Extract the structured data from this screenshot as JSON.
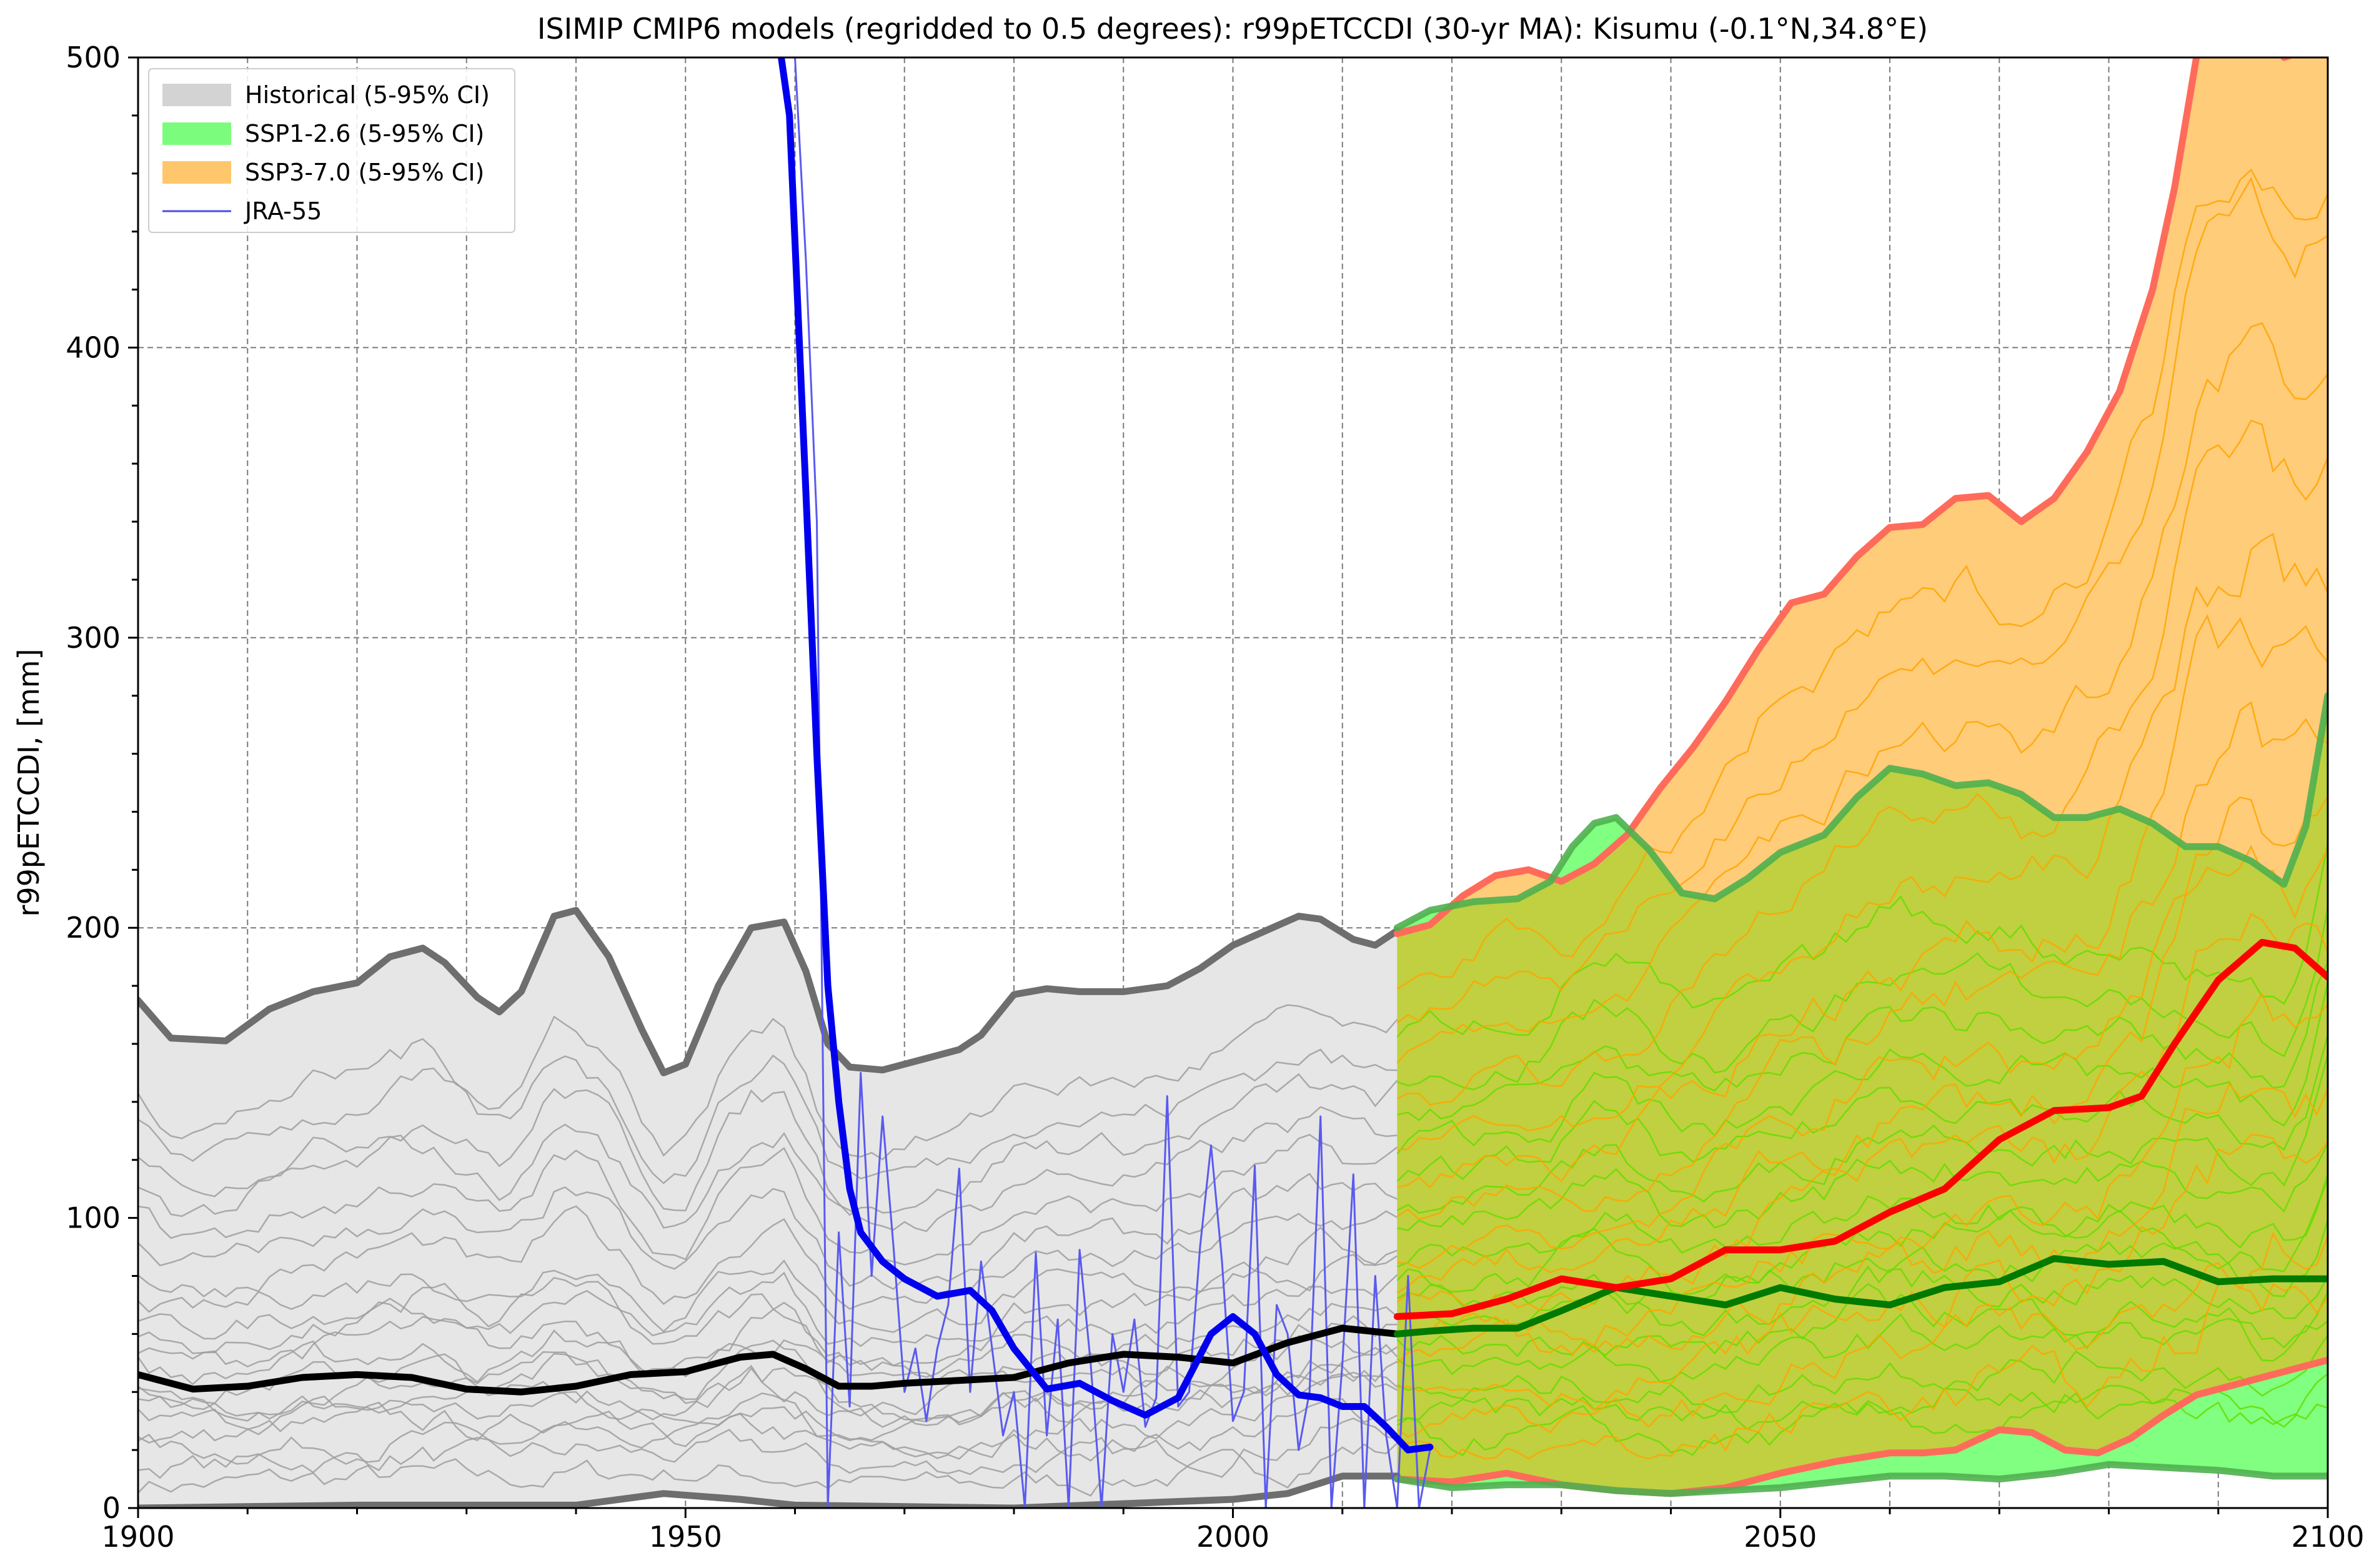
{
  "chart_data": {
    "type": "line",
    "title": "ISIMIP CMIP6 models (regridded to 0.5 degrees): r99pETCCDI (30-yr MA): Kisumu (-0.1°N,34.8°E)",
    "xlabel": "",
    "ylabel": "r99pETCCDI, [mm]",
    "xlim": [
      1900,
      2100
    ],
    "ylim": [
      0,
      500
    ],
    "x_ticks": [
      "1900",
      "1950",
      "2000",
      "2050",
      "2100"
    ],
    "y_ticks": [
      "0",
      "100",
      "200",
      "300",
      "400",
      "500"
    ],
    "grid": true,
    "legend_position": "top-left",
    "legend": [
      {
        "label": "Historical (5-95% CI)",
        "color": "#d3d3d3",
        "kind": "patch"
      },
      {
        "label": "SSP1-2.6 (5-95% CI)",
        "color": "#7cfc7c",
        "kind": "patch"
      },
      {
        "label": "SSP3-7.0 (5-95% CI)",
        "color": "#ffc66b",
        "kind": "patch"
      },
      {
        "label": "JRA-55",
        "color": "#4a4ae8",
        "kind": "line"
      }
    ],
    "colors": {
      "hist_band": "#e6e6e6",
      "hist_bound": "#6e6e6e",
      "hist_mean": "#000000",
      "hist_members": "#9e9e9e",
      "ssp126_band": "#80ff80",
      "ssp126_bound": "#4fb04f",
      "ssp126_mean": "#007a00",
      "ssp126_members": "#66dd00",
      "ssp370_band": "#ffcc7a",
      "ssp370_bound": "#ff6b5a",
      "ssp370_mean": "#ff0000",
      "ssp370_members": "#ffa500",
      "overlap_band": "#c0d040",
      "jra_raw": "#5a5af0",
      "jra_smooth": "#0000ee"
    },
    "series": [
      {
        "id": "hist_upper",
        "group": "historical",
        "role": "upper",
        "x": [
          1900,
          1903,
          1908,
          1912,
          1916,
          1920,
          1923,
          1926,
          1928,
          1931,
          1933,
          1935,
          1938,
          1940,
          1943,
          1946,
          1948,
          1950,
          1953,
          1956,
          1959,
          1961,
          1963,
          1965,
          1968,
          1972,
          1975,
          1977,
          1980,
          1983,
          1986,
          1990,
          1994,
          1997,
          2000,
          2003,
          2006,
          2008,
          2011,
          2013,
          2015
        ],
        "y": [
          175,
          162,
          161,
          172,
          178,
          181,
          190,
          193,
          188,
          176,
          171,
          178,
          204,
          206,
          190,
          165,
          150,
          153,
          180,
          200,
          202,
          185,
          160,
          152,
          151,
          155,
          158,
          163,
          177,
          179,
          178,
          178,
          180,
          186,
          194,
          199,
          204,
          203,
          196,
          194,
          199
        ]
      },
      {
        "id": "hist_mean",
        "group": "historical",
        "role": "mean",
        "x": [
          1900,
          1905,
          1910,
          1915,
          1920,
          1925,
          1930,
          1935,
          1940,
          1945,
          1950,
          1955,
          1958,
          1961,
          1964,
          1967,
          1970,
          1975,
          1980,
          1985,
          1990,
          1995,
          2000,
          2005,
          2010,
          2015
        ],
        "y": [
          46,
          41,
          42,
          45,
          46,
          45,
          41,
          40,
          42,
          46,
          47,
          52,
          53,
          48,
          42,
          42,
          43,
          44,
          45,
          50,
          53,
          52,
          50,
          57,
          62,
          60
        ]
      },
      {
        "id": "hist_lower",
        "group": "historical",
        "role": "lower",
        "x": [
          1900,
          1920,
          1940,
          1948,
          1955,
          1960,
          1980,
          2000,
          2005,
          2010,
          2015
        ],
        "y": [
          0,
          1,
          1,
          5,
          3,
          1,
          0,
          3,
          5,
          11,
          11
        ]
      },
      {
        "id": "ssp126_upper",
        "group": "ssp126",
        "role": "upper",
        "x": [
          2015,
          2018,
          2022,
          2026,
          2029,
          2031,
          2033,
          2035,
          2038,
          2041,
          2044,
          2047,
          2050,
          2054,
          2057,
          2060,
          2063,
          2066,
          2069,
          2072,
          2075,
          2078,
          2081,
          2084,
          2087,
          2090,
          2093,
          2096,
          2098,
          2100
        ],
        "y": [
          200,
          206,
          209,
          210,
          216,
          228,
          236,
          238,
          227,
          212,
          210,
          217,
          226,
          232,
          245,
          255,
          253,
          249,
          250,
          246,
          238,
          238,
          241,
          236,
          228,
          228,
          223,
          215,
          235,
          280
        ]
      },
      {
        "id": "ssp126_mean",
        "group": "ssp126",
        "role": "mean",
        "x": [
          2015,
          2018,
          2022,
          2026,
          2030,
          2035,
          2040,
          2045,
          2050,
          2055,
          2060,
          2065,
          2070,
          2075,
          2080,
          2085,
          2090,
          2095,
          2100
        ],
        "y": [
          60,
          61,
          62,
          62,
          68,
          76,
          73,
          70,
          76,
          72,
          70,
          76,
          78,
          86,
          84,
          85,
          78,
          79,
          79
        ]
      },
      {
        "id": "ssp126_lower",
        "group": "ssp126",
        "role": "lower",
        "x": [
          2015,
          2020,
          2025,
          2030,
          2035,
          2040,
          2045,
          2050,
          2055,
          2060,
          2065,
          2070,
          2075,
          2080,
          2085,
          2090,
          2095,
          2100
        ],
        "y": [
          10,
          7,
          8,
          8,
          6,
          5,
          6,
          7,
          9,
          11,
          11,
          10,
          12,
          15,
          14,
          13,
          11,
          11
        ]
      },
      {
        "id": "ssp370_upper",
        "group": "ssp370",
        "role": "upper",
        "x": [
          2015,
          2018,
          2021,
          2024,
          2027,
          2030,
          2033,
          2036,
          2039,
          2042,
          2045,
          2048,
          2051,
          2054,
          2057,
          2060,
          2063,
          2066,
          2069,
          2072,
          2075,
          2078,
          2081,
          2084,
          2086,
          2088,
          2090,
          2093,
          2096,
          2100
        ],
        "y": [
          198,
          201,
          211,
          218,
          220,
          216,
          222,
          232,
          248,
          262,
          278,
          296,
          312,
          315,
          328,
          338,
          339,
          348,
          349,
          340,
          348,
          364,
          385,
          420,
          455,
          500,
          510,
          525,
          500,
          505
        ]
      },
      {
        "id": "ssp370_mean",
        "group": "ssp370",
        "role": "mean",
        "x": [
          2015,
          2020,
          2025,
          2030,
          2035,
          2040,
          2045,
          2050,
          2055,
          2060,
          2065,
          2070,
          2075,
          2080,
          2083,
          2086,
          2090,
          2094,
          2097,
          2100
        ],
        "y": [
          66,
          67,
          72,
          79,
          76,
          79,
          89,
          89,
          92,
          102,
          110,
          127,
          137,
          138,
          142,
          160,
          182,
          195,
          193,
          183
        ]
      },
      {
        "id": "ssp370_lower",
        "group": "ssp370",
        "role": "lower",
        "x": [
          2015,
          2020,
          2025,
          2030,
          2035,
          2040,
          2045,
          2050,
          2055,
          2060,
          2063,
          2066,
          2070,
          2073,
          2076,
          2079,
          2082,
          2085,
          2088,
          2091,
          2094,
          2097,
          2100
        ],
        "y": [
          10,
          9,
          12,
          8,
          6,
          5,
          7,
          12,
          16,
          19,
          19,
          20,
          27,
          26,
          20,
          19,
          24,
          32,
          39,
          42,
          45,
          48,
          51
        ]
      },
      {
        "id": "jra_smooth",
        "group": "jra55",
        "role": "smoothed",
        "x": [
          1958,
          1959.5,
          1961,
          1962,
          1963,
          1964,
          1965,
          1966,
          1968,
          1970,
          1973,
          1976,
          1978,
          1980,
          1983,
          1986,
          1989,
          1992,
          1995,
          1998,
          2000,
          2002,
          2004,
          2006,
          2008,
          2010,
          2012,
          2014,
          2016,
          2018
        ],
        "y": [
          520,
          480,
          350,
          260,
          180,
          140,
          110,
          95,
          85,
          79,
          73,
          75,
          68,
          55,
          41,
          43,
          37,
          32,
          38,
          60,
          66,
          60,
          46,
          39,
          38,
          35,
          35,
          28,
          20,
          21
        ]
      },
      {
        "id": "jra_raw",
        "group": "jra55",
        "role": "annual",
        "x": [
          1959,
          1960,
          1961,
          1962,
          1963,
          1964,
          1965,
          1966,
          1967,
          1968,
          1969,
          1970,
          1971,
          1972,
          1973,
          1974,
          1975,
          1976,
          1977,
          1978,
          1979,
          1980,
          1981,
          1982,
          1983,
          1984,
          1985,
          1986,
          1987,
          1988,
          1989,
          1990,
          1991,
          1992,
          1993,
          1994,
          1995,
          1996,
          1997,
          1998,
          1999,
          2000,
          2001,
          2002,
          2003,
          2004,
          2005,
          2006,
          2007,
          2008,
          2009,
          2010,
          2011,
          2012,
          2013,
          2014,
          2015,
          2016,
          2017,
          2018
        ],
        "y": [
          520,
          500,
          430,
          340,
          0,
          95,
          35,
          150,
          80,
          135,
          90,
          40,
          55,
          30,
          55,
          70,
          117,
          40,
          85,
          55,
          25,
          40,
          0,
          88,
          25,
          65,
          0,
          89,
          50,
          0,
          60,
          40,
          65,
          28,
          38,
          142,
          35,
          40,
          90,
          125,
          85,
          30,
          40,
          118,
          0,
          70,
          60,
          20,
          40,
          135,
          0,
          50,
          115,
          0,
          80,
          25,
          0,
          80,
          0,
          20
        ]
      }
    ]
  }
}
